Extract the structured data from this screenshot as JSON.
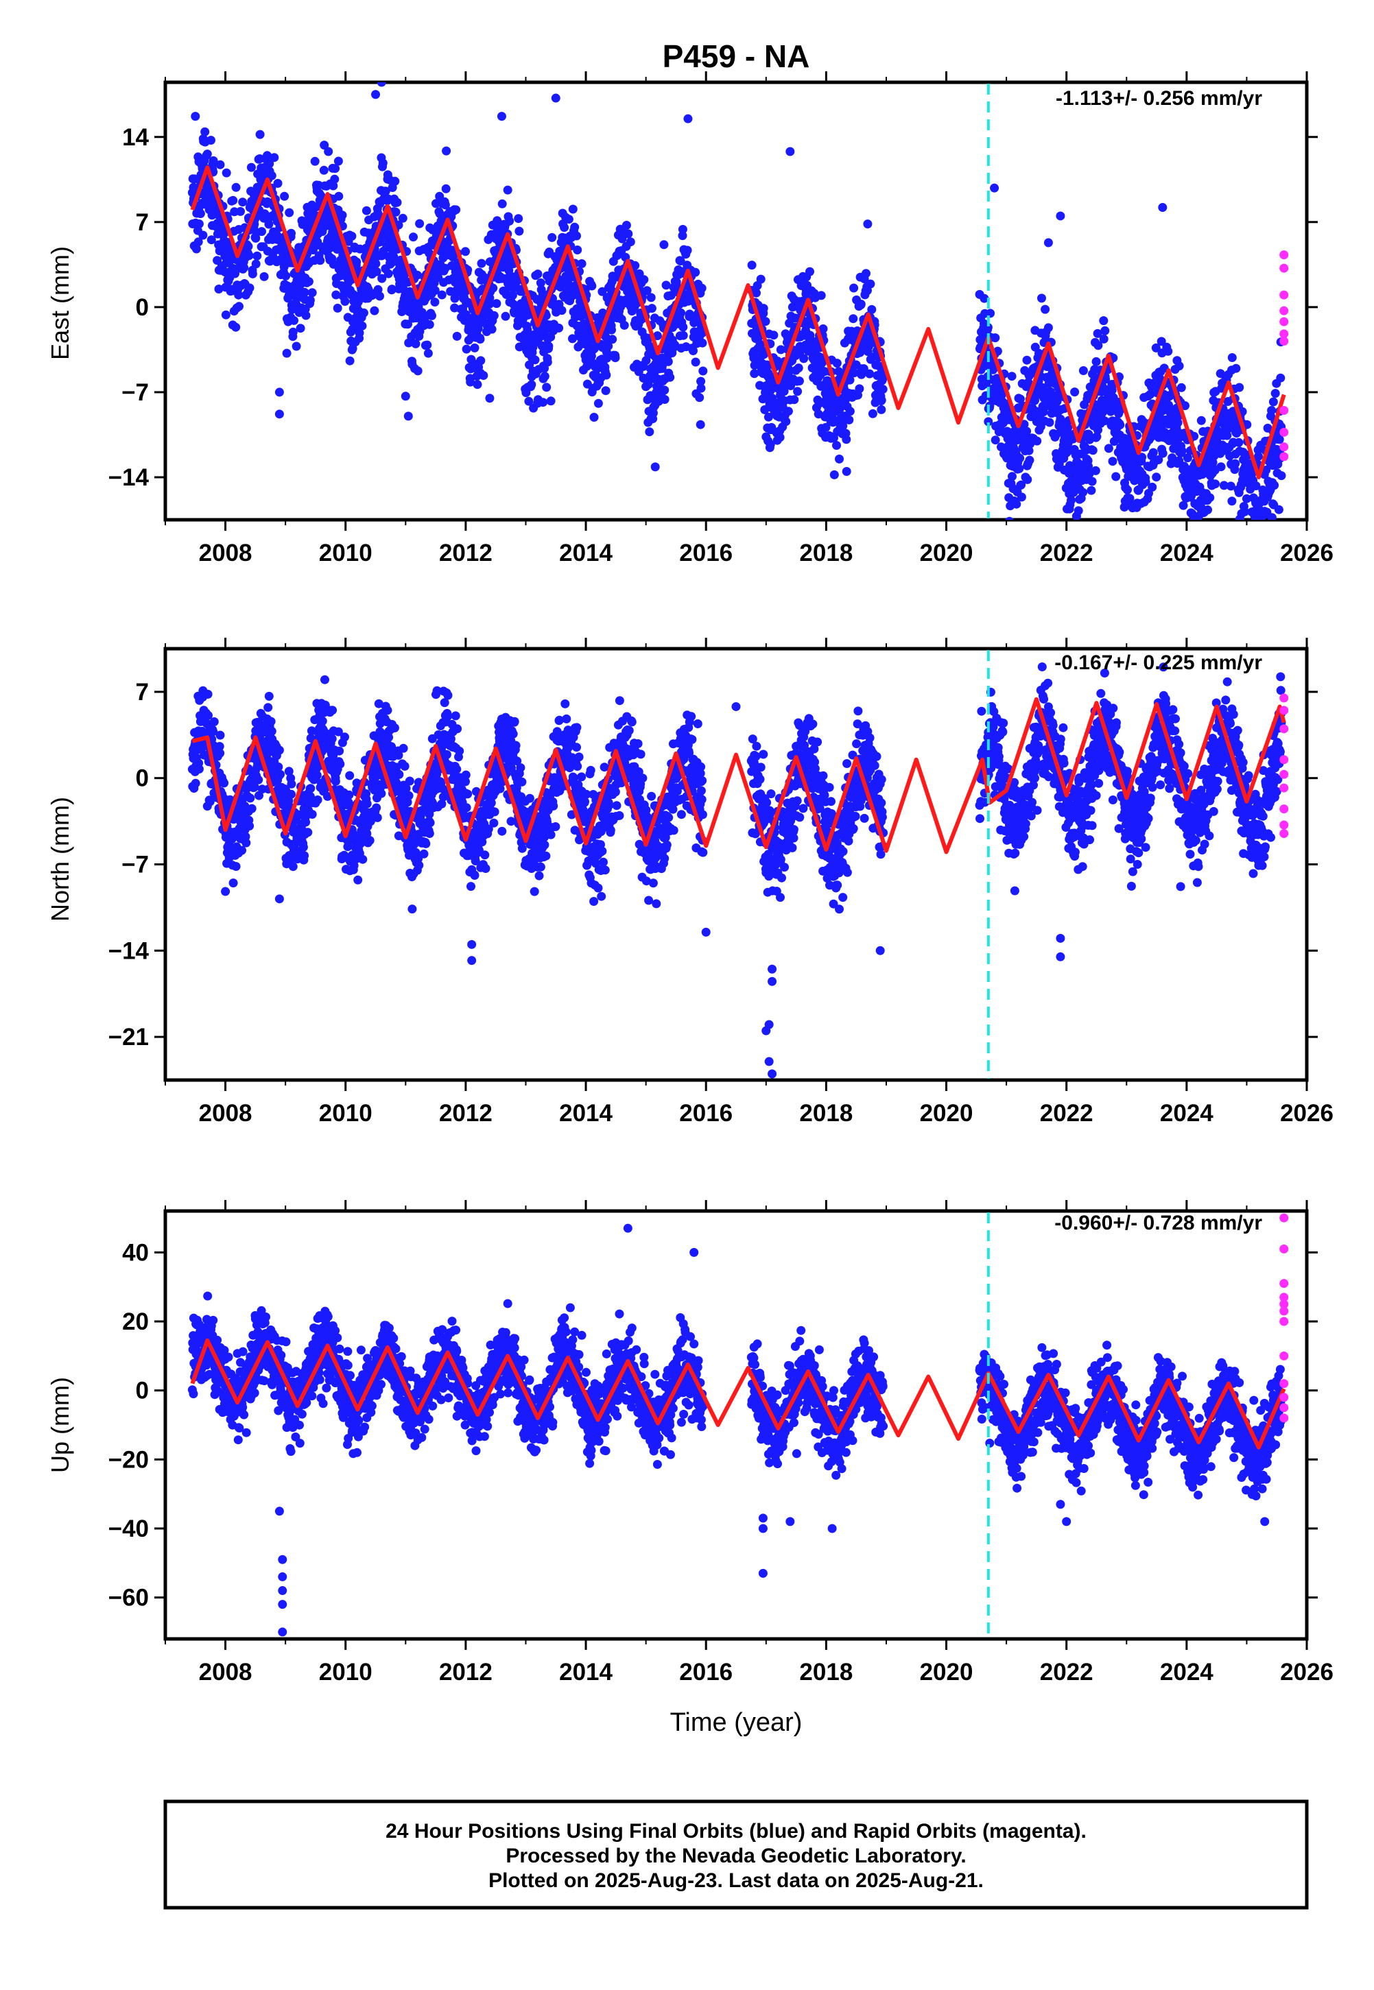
{
  "chart_data": {
    "title": "P459 - NA",
    "type": "scatter",
    "xlabel": "Time (year)",
    "xlim": [
      2007.0,
      2026.0
    ],
    "x_ticks": [
      2008,
      2010,
      2012,
      2014,
      2016,
      2018,
      2020,
      2022,
      2024,
      2026
    ],
    "equipment_change_year": 2020.7,
    "series_colors": {
      "final": "#1a1aff",
      "rapid": "#ff2bff",
      "model": "#ff1a1a",
      "marker": "#1ee6e6"
    },
    "panels": [
      {
        "name": "east",
        "ylabel": "East (mm)",
        "ylim": [
          -17.5,
          18.5
        ],
        "y_ticks": [
          14,
          7,
          0,
          -7,
          -14
        ],
        "rate": "-1.113+/- 0.256 mm/yr",
        "trend_mm_per_yr": -1.113,
        "offset_mm": 7.0,
        "annual_amplitude_mm": 3.5,
        "noise_mm": 2.4,
        "epoch_shift_2020_7_mm": 0.0,
        "model_series": [
          [
            2007.45,
            8.0
          ],
          [
            2007.7,
            11.5
          ],
          [
            2008.2,
            4.2
          ],
          [
            2008.7,
            10.5
          ],
          [
            2009.2,
            3.0
          ],
          [
            2009.7,
            9.3
          ],
          [
            2010.2,
            1.8
          ],
          [
            2010.7,
            8.3
          ],
          [
            2011.2,
            0.8
          ],
          [
            2011.7,
            7.2
          ],
          [
            2012.2,
            -0.5
          ],
          [
            2012.7,
            6.0
          ],
          [
            2013.2,
            -1.5
          ],
          [
            2013.7,
            5.0
          ],
          [
            2014.2,
            -2.8
          ],
          [
            2014.7,
            3.8
          ],
          [
            2015.2,
            -3.8
          ],
          [
            2015.7,
            3.0
          ],
          [
            2016.2,
            -5.0
          ],
          [
            2016.7,
            1.8
          ],
          [
            2017.2,
            -6.2
          ],
          [
            2017.7,
            0.6
          ],
          [
            2018.2,
            -7.2
          ],
          [
            2018.7,
            -0.6
          ],
          [
            2019.2,
            -8.3
          ],
          [
            2019.7,
            -1.8
          ],
          [
            2020.2,
            -9.5
          ],
          [
            2020.7,
            -2.5
          ],
          [
            2021.2,
            -9.8
          ],
          [
            2021.7,
            -3.0
          ],
          [
            2022.2,
            -11.0
          ],
          [
            2022.7,
            -4.0
          ],
          [
            2023.2,
            -12.0
          ],
          [
            2023.7,
            -5.2
          ],
          [
            2024.2,
            -13.0
          ],
          [
            2024.7,
            -6.2
          ],
          [
            2025.2,
            -14.0
          ],
          [
            2025.62,
            -7.2
          ]
        ],
        "rapid_points": [
          [
            2025.62,
            4.3
          ],
          [
            2025.62,
            3.2
          ],
          [
            2025.62,
            1.0
          ],
          [
            2025.62,
            -0.3
          ],
          [
            2025.62,
            -1.2
          ],
          [
            2025.62,
            -2.2
          ],
          [
            2025.62,
            -2.8
          ],
          [
            2025.62,
            -8.5
          ],
          [
            2025.62,
            -10.3
          ],
          [
            2025.62,
            -11.5
          ],
          [
            2025.62,
            -12.3
          ]
        ],
        "outliers": [
          [
            2008.9,
            -8.8
          ],
          [
            2008.9,
            -7.0
          ],
          [
            2010.6,
            18.5
          ],
          [
            2010.5,
            17.5
          ],
          [
            2013.5,
            17.2
          ],
          [
            2012.6,
            15.7
          ],
          [
            2015.7,
            15.5
          ],
          [
            2017.4,
            12.8
          ],
          [
            2020.8,
            9.8
          ],
          [
            2023.6,
            8.2
          ],
          [
            2021.9,
            7.5
          ],
          [
            2012.4,
            -7.5
          ],
          [
            2021.7,
            5.3
          ]
        ]
      },
      {
        "name": "north",
        "ylabel": "North (mm)",
        "ylim": [
          -24.5,
          10.5
        ],
        "y_ticks": [
          7,
          0,
          -7,
          -14,
          -21
        ],
        "rate": "-0.167+/- 0.225 mm/yr",
        "trend_mm_per_yr": -0.167,
        "offset_mm": -0.6,
        "annual_amplitude_mm": 3.8,
        "noise_mm": 1.9,
        "epoch_shift_2020_7_mm": 3.2,
        "model_series": [
          [
            2007.45,
            3.0
          ],
          [
            2007.7,
            3.3
          ],
          [
            2008.0,
            -4.2
          ],
          [
            2008.5,
            3.3
          ],
          [
            2009.0,
            -4.5
          ],
          [
            2009.5,
            3.0
          ],
          [
            2010.0,
            -4.7
          ],
          [
            2010.5,
            2.8
          ],
          [
            2011.0,
            -4.8
          ],
          [
            2011.5,
            2.6
          ],
          [
            2012.0,
            -5.0
          ],
          [
            2012.5,
            2.4
          ],
          [
            2013.0,
            -5.1
          ],
          [
            2013.5,
            2.3
          ],
          [
            2014.0,
            -5.3
          ],
          [
            2014.5,
            2.2
          ],
          [
            2015.0,
            -5.4
          ],
          [
            2015.5,
            2.0
          ],
          [
            2016.0,
            -5.5
          ],
          [
            2016.5,
            1.9
          ],
          [
            2017.0,
            -5.6
          ],
          [
            2017.5,
            1.7
          ],
          [
            2018.0,
            -5.8
          ],
          [
            2018.5,
            1.6
          ],
          [
            2019.0,
            -5.9
          ],
          [
            2019.5,
            1.5
          ],
          [
            2020.0,
            -6.0
          ],
          [
            2020.6,
            1.5
          ],
          [
            2020.72,
            -2.0
          ],
          [
            2021.0,
            -1.0
          ],
          [
            2021.5,
            6.4
          ],
          [
            2022.0,
            -1.4
          ],
          [
            2022.5,
            6.1
          ],
          [
            2023.0,
            -1.6
          ],
          [
            2023.5,
            6.0
          ],
          [
            2024.0,
            -1.7
          ],
          [
            2024.5,
            5.8
          ],
          [
            2025.0,
            -1.9
          ],
          [
            2025.55,
            5.8
          ],
          [
            2025.62,
            4.5
          ]
        ],
        "rapid_points": [
          [
            2025.62,
            6.5
          ],
          [
            2025.62,
            5.5
          ],
          [
            2025.62,
            4.0
          ],
          [
            2025.62,
            1.5
          ],
          [
            2025.62,
            0.3
          ],
          [
            2025.62,
            -0.8
          ],
          [
            2025.62,
            -2.5
          ],
          [
            2025.62,
            -3.8
          ],
          [
            2025.62,
            -4.5
          ]
        ],
        "outliers": [
          [
            2017.1,
            -24.0
          ],
          [
            2017.05,
            -23.0
          ],
          [
            2017.0,
            -20.5
          ],
          [
            2017.05,
            -20.0
          ],
          [
            2017.1,
            -16.5
          ],
          [
            2017.1,
            -15.5
          ],
          [
            2012.1,
            -14.8
          ],
          [
            2012.1,
            -13.5
          ],
          [
            2021.9,
            -14.5
          ],
          [
            2021.9,
            -13.0
          ],
          [
            2016.0,
            -12.5
          ],
          [
            2016.5,
            5.8
          ],
          [
            2018.9,
            -14.0
          ],
          [
            2023.9,
            -8.8
          ],
          [
            2008.0,
            -9.2
          ],
          [
            2008.9,
            -9.8
          ]
        ]
      },
      {
        "name": "up",
        "ylabel": "Up (mm)",
        "ylim": [
          -72.0,
          52.0
        ],
        "y_ticks": [
          40,
          20,
          0,
          -20,
          -40,
          -60
        ],
        "rate": "-0.960+/- 0.728 mm/yr",
        "trend_mm_per_yr": -0.96,
        "offset_mm": 6.0,
        "annual_amplitude_mm": 9.0,
        "noise_mm": 5.2,
        "epoch_shift_2020_7_mm": 0.0,
        "model_series": [
          [
            2007.45,
            2.0
          ],
          [
            2007.7,
            14.5
          ],
          [
            2008.2,
            -3.5
          ],
          [
            2008.7,
            14.0
          ],
          [
            2009.2,
            -4.5
          ],
          [
            2009.7,
            13.0
          ],
          [
            2010.2,
            -5.5
          ],
          [
            2010.7,
            12.5
          ],
          [
            2011.2,
            -6.5
          ],
          [
            2011.7,
            11.0
          ],
          [
            2012.2,
            -7.0
          ],
          [
            2012.7,
            10.0
          ],
          [
            2013.2,
            -8.0
          ],
          [
            2013.7,
            9.5
          ],
          [
            2014.2,
            -8.5
          ],
          [
            2014.7,
            8.5
          ],
          [
            2015.2,
            -9.5
          ],
          [
            2015.7,
            7.5
          ],
          [
            2016.2,
            -10.0
          ],
          [
            2016.7,
            6.5
          ],
          [
            2017.2,
            -11.0
          ],
          [
            2017.7,
            5.5
          ],
          [
            2018.2,
            -12.0
          ],
          [
            2018.7,
            4.5
          ],
          [
            2019.2,
            -13.0
          ],
          [
            2019.7,
            4.0
          ],
          [
            2020.2,
            -14.0
          ],
          [
            2020.7,
            5.0
          ],
          [
            2021.2,
            -12.0
          ],
          [
            2021.7,
            4.5
          ],
          [
            2022.2,
            -13.0
          ],
          [
            2022.7,
            4.0
          ],
          [
            2023.2,
            -14.5
          ],
          [
            2023.7,
            3.0
          ],
          [
            2024.2,
            -15.0
          ],
          [
            2024.7,
            2.0
          ],
          [
            2025.2,
            -16.5
          ],
          [
            2025.62,
            0.5
          ]
        ],
        "rapid_points": [
          [
            2025.62,
            50.0
          ],
          [
            2025.62,
            41.0
          ],
          [
            2025.62,
            31.0
          ],
          [
            2025.62,
            27.0
          ],
          [
            2025.62,
            25.0
          ],
          [
            2025.62,
            23.0
          ],
          [
            2025.62,
            20.0
          ],
          [
            2025.62,
            10.0
          ],
          [
            2025.62,
            2.0
          ],
          [
            2025.62,
            -2.0
          ],
          [
            2025.62,
            -5.0
          ],
          [
            2025.62,
            -8.0
          ]
        ],
        "outliers": [
          [
            2008.95,
            -70.0
          ],
          [
            2008.95,
            -62.0
          ],
          [
            2008.95,
            -58.0
          ],
          [
            2008.95,
            -54.0
          ],
          [
            2008.95,
            -49.0
          ],
          [
            2008.9,
            -35.0
          ],
          [
            2014.7,
            47.0
          ],
          [
            2015.8,
            40.0
          ],
          [
            2016.95,
            -53.0
          ],
          [
            2016.95,
            -37.0
          ],
          [
            2016.95,
            -40.0
          ],
          [
            2017.4,
            -38.0
          ],
          [
            2018.1,
            -40.0
          ],
          [
            2025.3,
            -38.0
          ],
          [
            2022.0,
            -38.0
          ],
          [
            2021.9,
            -33.0
          ]
        ]
      }
    ]
  },
  "footer": {
    "lines": [
      "24 Hour Positions Using Final Orbits (blue) and Rapid Orbits (magenta).",
      "Processed by the Nevada Geodetic Laboratory.",
      "Plotted on 2025-Aug-23. Last data on 2025-Aug-21."
    ]
  }
}
